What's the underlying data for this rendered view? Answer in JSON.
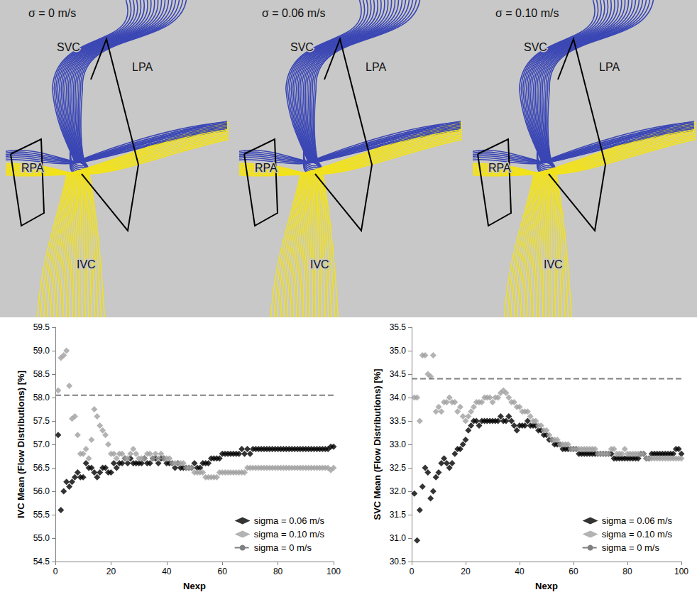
{
  "streamline_panels": [
    {
      "title": "σ = 0 m/s",
      "vessels": [
        "SVC",
        "LPA",
        "RPA",
        "IVC"
      ]
    },
    {
      "title": "σ = 0.06 m/s",
      "vessels": [
        "SVC",
        "LPA",
        "RPA",
        "IVC"
      ]
    },
    {
      "title": "σ = 0.10 m/s",
      "vessels": [
        "SVC",
        "LPA",
        "RPA",
        "IVC"
      ]
    }
  ],
  "chart_data": [
    {
      "type": "scatter",
      "x_label": "Nexp",
      "y_label": "IVC Mean (Flow Distributions) [%]",
      "xlim": [
        0,
        100
      ],
      "xticks": [
        0,
        20,
        40,
        60,
        80,
        100
      ],
      "ylim": [
        54.5,
        59.5
      ],
      "yticks": [
        54.5,
        {
          "value": 55,
          "label": "55.0"
        },
        55.5,
        {
          "value": 56,
          "label": "56.0"
        },
        56.5,
        {
          "value": 57,
          "label": "57.0"
        },
        57.5,
        {
          "value": 58,
          "label": "58.0"
        },
        58.5,
        {
          "value": 59,
          "label": "59.0"
        },
        59.5
      ],
      "grid": false,
      "legend": "lower right",
      "x": [
        1,
        2,
        3,
        4,
        5,
        6,
        7,
        8,
        9,
        10,
        11,
        12,
        13,
        14,
        15,
        16,
        17,
        18,
        19,
        20,
        21,
        22,
        23,
        24,
        25,
        26,
        27,
        28,
        29,
        30,
        31,
        32,
        33,
        34,
        35,
        36,
        37,
        38,
        39,
        40,
        41,
        42,
        43,
        44,
        45,
        46,
        47,
        48,
        49,
        50,
        51,
        52,
        53,
        54,
        55,
        56,
        57,
        58,
        59,
        60,
        61,
        62,
        63,
        64,
        65,
        66,
        67,
        68,
        69,
        70,
        71,
        72,
        73,
        74,
        75,
        76,
        77,
        78,
        79,
        80,
        81,
        82,
        83,
        84,
        85,
        86,
        87,
        88,
        89,
        90,
        91,
        92,
        93,
        94,
        95,
        96,
        97,
        98,
        99,
        100
      ],
      "series": [
        {
          "name": "sigma = 0.06 m/s",
          "color": "#000000",
          "marker": "diamond",
          "values": [
            57.2,
            55.6,
            56.0,
            56.2,
            56.1,
            56.2,
            56.3,
            56.4,
            56.3,
            56.3,
            56.6,
            56.5,
            56.5,
            56.4,
            56.3,
            56.4,
            56.5,
            56.5,
            56.4,
            56.4,
            56.6,
            56.5,
            56.6,
            56.6,
            56.7,
            56.6,
            56.7,
            56.6,
            56.6,
            56.6,
            56.6,
            56.7,
            56.6,
            56.6,
            56.7,
            56.7,
            56.6,
            56.7,
            56.7,
            56.6,
            56.6,
            56.6,
            56.5,
            56.6,
            56.5,
            56.5,
            56.5,
            56.5,
            56.5,
            56.6,
            56.5,
            56.5,
            56.6,
            56.6,
            56.6,
            56.7,
            56.7,
            56.7,
            56.7,
            56.8,
            56.8,
            56.8,
            56.8,
            56.8,
            56.8,
            56.8,
            56.9,
            56.8,
            56.9,
            56.8,
            56.9,
            56.9,
            56.9,
            56.9,
            56.9,
            56.9,
            56.9,
            56.9,
            56.9,
            56.9,
            56.9,
            56.9,
            56.9,
            56.9,
            56.9,
            56.9,
            56.9,
            56.9,
            56.9,
            56.9,
            56.9,
            56.9,
            56.9,
            56.9,
            56.9,
            56.9,
            56.9,
            56.9,
            56.95,
            56.95
          ]
        },
        {
          "name": "sigma = 0.10 m/s",
          "color": "#a0a0a0",
          "marker": "diamond",
          "values": [
            58.15,
            58.85,
            58.9,
            59.0,
            58.25,
            57.55,
            57.6,
            57.2,
            56.8,
            56.8,
            56.9,
            56.7,
            57.1,
            57.75,
            57.6,
            57.4,
            57.3,
            57.2,
            57.0,
            56.8,
            56.8,
            56.7,
            56.8,
            56.8,
            56.7,
            56.7,
            56.8,
            56.9,
            56.8,
            56.7,
            56.7,
            56.7,
            56.8,
            56.8,
            56.7,
            56.8,
            56.7,
            56.8,
            56.7,
            56.7,
            56.7,
            56.6,
            56.6,
            56.6,
            56.6,
            56.6,
            56.5,
            56.5,
            56.5,
            56.4,
            56.4,
            56.4,
            56.4,
            56.3,
            56.3,
            56.3,
            56.3,
            56.3,
            56.4,
            56.4,
            56.4,
            56.4,
            56.4,
            56.4,
            56.4,
            56.4,
            56.4,
            56.4,
            56.5,
            56.5,
            56.5,
            56.5,
            56.5,
            56.5,
            56.5,
            56.5,
            56.5,
            56.5,
            56.5,
            56.5,
            56.5,
            56.5,
            56.5,
            56.5,
            56.5,
            56.5,
            56.5,
            56.5,
            56.5,
            56.5,
            56.5,
            56.5,
            56.5,
            56.5,
            56.5,
            56.5,
            56.5,
            56.5,
            56.45,
            56.5
          ]
        },
        {
          "name": "sigma = 0 m/s",
          "type": "line",
          "line_style": "dashed",
          "color": "#808080",
          "x": [
            0,
            100
          ],
          "values": [
            58.05,
            58.05
          ]
        }
      ]
    },
    {
      "type": "scatter",
      "x_label": "Nexp",
      "y_label": "SVC Mean (Flow Distributions) [%]",
      "xlim": [
        0,
        100
      ],
      "xticks": [
        0,
        20,
        40,
        60,
        80,
        100
      ],
      "ylim": [
        30.5,
        35.5
      ],
      "yticks": [
        30.5,
        {
          "value": 31,
          "label": "31.0"
        },
        31.5,
        {
          "value": 32,
          "label": "32.0"
        },
        32.5,
        {
          "value": 33,
          "label": "33.0"
        },
        33.5,
        {
          "value": 34,
          "label": "34.0"
        },
        34.5,
        {
          "value": 35,
          "label": "35.0"
        },
        35.5
      ],
      "grid": false,
      "legend": "lower right",
      "x": [
        1,
        2,
        3,
        4,
        5,
        6,
        7,
        8,
        9,
        10,
        11,
        12,
        13,
        14,
        15,
        16,
        17,
        18,
        19,
        20,
        21,
        22,
        23,
        24,
        25,
        26,
        27,
        28,
        29,
        30,
        31,
        32,
        33,
        34,
        35,
        36,
        37,
        38,
        39,
        40,
        41,
        42,
        43,
        44,
        45,
        46,
        47,
        48,
        49,
        50,
        51,
        52,
        53,
        54,
        55,
        56,
        57,
        58,
        59,
        60,
        61,
        62,
        63,
        64,
        65,
        66,
        67,
        68,
        69,
        70,
        71,
        72,
        73,
        74,
        75,
        76,
        77,
        78,
        79,
        80,
        81,
        82,
        83,
        84,
        85,
        86,
        87,
        88,
        89,
        90,
        91,
        92,
        93,
        94,
        95,
        96,
        97,
        98,
        99,
        100
      ],
      "series": [
        {
          "name": "sigma = 0.06 m/s",
          "color": "#000000",
          "marker": "diamond",
          "values": [
            31.95,
            30.95,
            31.6,
            32.1,
            32.5,
            32.4,
            31.85,
            32.0,
            32.3,
            32.4,
            32.6,
            32.7,
            32.6,
            32.5,
            32.6,
            32.8,
            32.9,
            32.9,
            33.0,
            33.1,
            33.3,
            33.4,
            33.5,
            33.5,
            33.4,
            33.5,
            33.5,
            33.5,
            33.5,
            33.5,
            33.5,
            33.5,
            33.6,
            33.5,
            33.5,
            33.6,
            33.5,
            33.4,
            33.3,
            33.4,
            33.4,
            33.4,
            33.5,
            33.4,
            33.4,
            33.4,
            33.3,
            33.3,
            33.2,
            33.2,
            33.1,
            33.1,
            33.0,
            33.0,
            33.0,
            32.9,
            32.9,
            32.9,
            32.9,
            32.9,
            32.9,
            32.8,
            32.8,
            32.8,
            32.8,
            32.8,
            32.8,
            32.8,
            32.8,
            32.8,
            32.8,
            32.8,
            32.8,
            32.8,
            32.7,
            32.7,
            32.7,
            32.7,
            32.7,
            32.7,
            32.7,
            32.7,
            32.7,
            32.7,
            32.8,
            32.8,
            32.7,
            32.7,
            32.8,
            32.8,
            32.8,
            32.8,
            32.8,
            32.8,
            32.8,
            32.8,
            32.8,
            32.9,
            32.9,
            32.8
          ]
        },
        {
          "name": "sigma = 0.10 m/s",
          "color": "#a0a0a0",
          "marker": "diamond",
          "values": [
            34.0,
            34.0,
            33.5,
            34.9,
            34.9,
            34.5,
            34.45,
            34.9,
            33.7,
            33.8,
            33.7,
            33.9,
            33.9,
            34.0,
            33.9,
            33.9,
            33.7,
            33.8,
            33.6,
            33.5,
            33.6,
            33.7,
            33.8,
            33.9,
            33.9,
            33.9,
            34.0,
            34.0,
            34.0,
            33.9,
            34.0,
            34.0,
            34.1,
            34.15,
            34.1,
            34.0,
            33.9,
            33.9,
            33.8,
            33.8,
            33.7,
            33.7,
            33.7,
            33.6,
            33.5,
            33.5,
            33.4,
            33.4,
            33.3,
            33.3,
            33.2,
            33.1,
            33.1,
            33.1,
            33.0,
            33.0,
            33.0,
            33.0,
            32.9,
            32.9,
            32.9,
            32.9,
            32.9,
            32.9,
            32.9,
            32.9,
            32.9,
            32.9,
            32.8,
            32.8,
            32.8,
            32.8,
            32.8,
            32.9,
            32.9,
            32.8,
            32.8,
            32.8,
            32.9,
            32.8,
            32.8,
            32.8,
            32.8,
            32.8,
            32.8,
            32.8,
            32.7,
            32.7,
            32.7,
            32.7,
            32.7,
            32.7,
            32.7,
            32.7,
            32.7,
            32.7,
            32.7,
            32.7,
            32.7,
            32.7
          ]
        },
        {
          "name": "sigma = 0 m/s",
          "type": "line",
          "line_style": "dashed",
          "color": "#808080",
          "x": [
            0,
            100
          ],
          "values": [
            34.4,
            34.4
          ]
        }
      ]
    }
  ]
}
